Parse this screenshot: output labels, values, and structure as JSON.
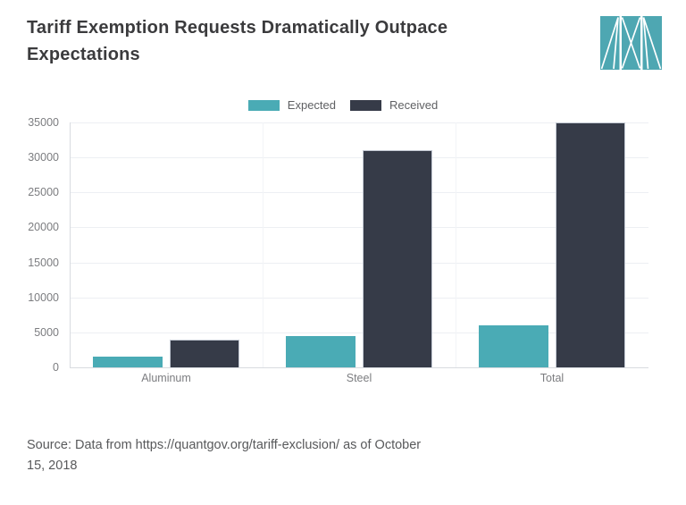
{
  "header": {
    "title_lines": [
      "Tariff Exemption Requests Dramatically Outpace",
      "Expectations"
    ],
    "logo_color": "#4EA7B2"
  },
  "chart_data": {
    "type": "bar",
    "title": "Tariff Exemption Requests Dramatically Outpace Expectations",
    "categories": [
      "Aluminum",
      "Steel",
      "Total"
    ],
    "series": [
      {
        "name": "Expected",
        "color": "#4AABB5",
        "values": [
          1500,
          4500,
          6000
        ]
      },
      {
        "name": "Received",
        "color": "#363B48",
        "border": "#c2c8d2",
        "values": [
          4000,
          31000,
          35000
        ]
      }
    ],
    "xlabel": "",
    "ylabel": "",
    "ylim": [
      0,
      35000
    ],
    "yticks": [
      0,
      5000,
      10000,
      15000,
      20000,
      25000,
      30000,
      35000
    ],
    "grid": true,
    "legend_position": "top-center"
  },
  "footer": {
    "source_lines": [
      "Source: Data from https://quantgov.org/tariff-exclusion/ as of October",
      "15, 2018"
    ]
  }
}
